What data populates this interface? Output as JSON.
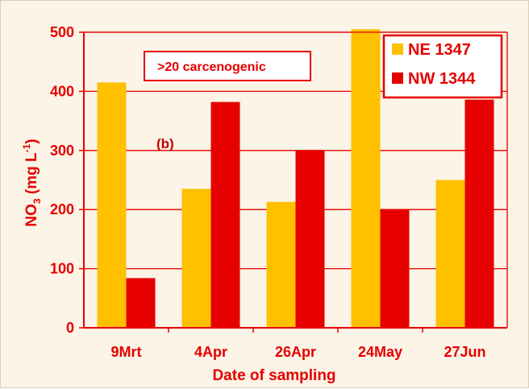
{
  "chart_data": {
    "type": "bar",
    "xlabel": "Date of sampling",
    "ylabel_main": "NO",
    "ylabel_sub": "3",
    "ylabel_unit": " (mg L",
    "ylabel_exp": "-1",
    "ylabel_close": ")",
    "categories": [
      "9Mrt",
      "4Apr",
      "26Apr",
      "24May",
      "27Jun"
    ],
    "series": [
      {
        "name": "NE 1347",
        "color": "#ffc000",
        "values": [
          415,
          235,
          213,
          505,
          250
        ]
      },
      {
        "name": "NW 1344",
        "color": "#e60000",
        "values": [
          84,
          382,
          300,
          200,
          386
        ]
      }
    ],
    "ylim": [
      0,
      500
    ],
    "yticks": [
      0,
      100,
      200,
      300,
      400,
      500
    ],
    "grid": true,
    "legend_position": "top-right",
    "annotation": ">20 carcenogenic",
    "panel_label": "(b)"
  }
}
